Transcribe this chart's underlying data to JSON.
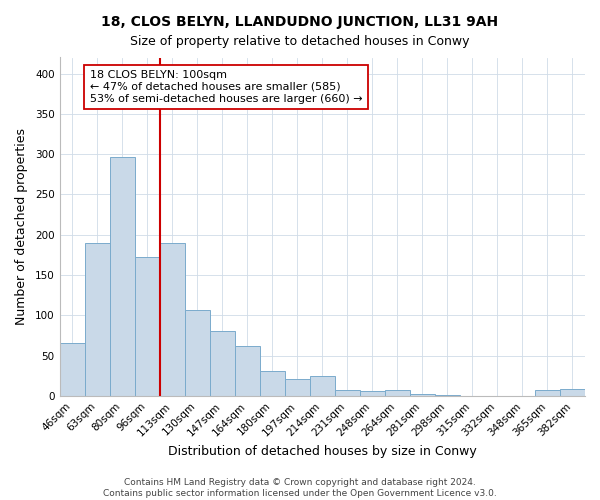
{
  "title": "18, CLOS BELYN, LLANDUDNO JUNCTION, LL31 9AH",
  "subtitle": "Size of property relative to detached houses in Conwy",
  "xlabel": "Distribution of detached houses by size in Conwy",
  "ylabel": "Number of detached properties",
  "bar_labels": [
    "46sqm",
    "63sqm",
    "80sqm",
    "96sqm",
    "113sqm",
    "130sqm",
    "147sqm",
    "164sqm",
    "180sqm",
    "197sqm",
    "214sqm",
    "231sqm",
    "248sqm",
    "264sqm",
    "281sqm",
    "298sqm",
    "315sqm",
    "332sqm",
    "348sqm",
    "365sqm",
    "382sqm"
  ],
  "bar_values": [
    65,
    190,
    297,
    172,
    190,
    106,
    80,
    62,
    31,
    21,
    25,
    7,
    6,
    7,
    2,
    1,
    0,
    0,
    0,
    7,
    8
  ],
  "bar_color": "#c9d9e8",
  "bar_edge_color": "#7aabcc",
  "vline_color": "#cc0000",
  "annotation_title": "18 CLOS BELYN: 100sqm",
  "annotation_line1": "← 47% of detached houses are smaller (585)",
  "annotation_line2": "53% of semi-detached houses are larger (660) →",
  "annotation_box_color": "#ffffff",
  "annotation_box_edge": "#cc0000",
  "ylim": [
    0,
    420
  ],
  "yticks": [
    0,
    50,
    100,
    150,
    200,
    250,
    300,
    350,
    400
  ],
  "footer1": "Contains HM Land Registry data © Crown copyright and database right 2024.",
  "footer2": "Contains public sector information licensed under the Open Government Licence v3.0.",
  "title_fontsize": 10,
  "subtitle_fontsize": 9,
  "axis_label_fontsize": 9,
  "tick_fontsize": 7.5,
  "footer_fontsize": 6.5,
  "annotation_fontsize": 8
}
